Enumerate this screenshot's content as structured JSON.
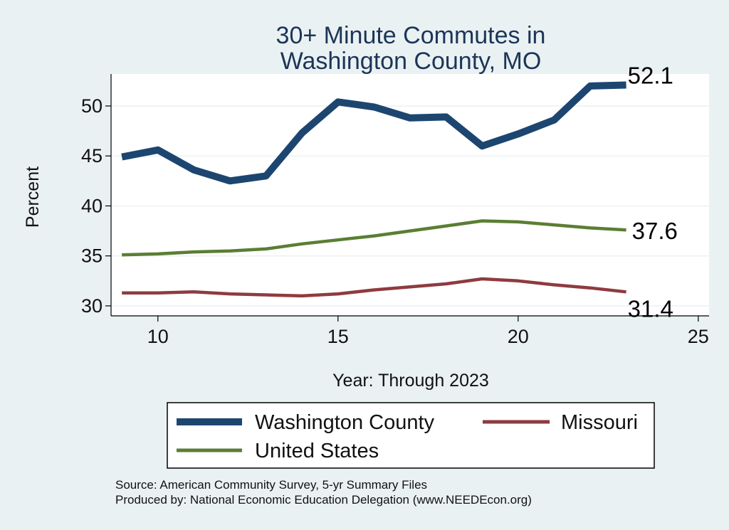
{
  "chart_data": {
    "type": "line",
    "title_lines": [
      "30+ Minute Commutes in",
      "Washington County, MO"
    ],
    "xlabel": "Year: Through 2023",
    "ylabel": "Percent",
    "x": [
      9,
      10,
      11,
      12,
      13,
      14,
      15,
      16,
      17,
      18,
      19,
      20,
      21,
      22,
      23
    ],
    "xlim": [
      8.7,
      25.3
    ],
    "ylim": [
      29.0,
      53.2
    ],
    "xticks": [
      10,
      15,
      20,
      25
    ],
    "yticks": [
      30,
      35,
      40,
      45,
      50
    ],
    "grid": true,
    "legend_position": "bottom",
    "series": [
      {
        "name": "Washington County",
        "color": "#1c4670",
        "values": [
          44.9,
          45.6,
          43.6,
          42.5,
          43.0,
          47.3,
          50.4,
          49.9,
          48.8,
          48.9,
          46.0,
          47.2,
          48.6,
          52.0,
          52.1
        ],
        "end_label": "52.1"
      },
      {
        "name": "United States",
        "color": "#5b7e33",
        "values": [
          35.1,
          35.2,
          35.4,
          35.5,
          35.7,
          36.2,
          36.6,
          37.0,
          37.5,
          38.0,
          38.5,
          38.4,
          38.1,
          37.8,
          37.6
        ],
        "end_label": "37.6"
      },
      {
        "name": "Missouri",
        "color": "#8e3b40",
        "values": [
          31.3,
          31.3,
          31.4,
          31.2,
          31.1,
          31.0,
          31.2,
          31.6,
          31.9,
          32.2,
          32.7,
          32.5,
          32.1,
          31.8,
          31.4
        ],
        "end_label": "31.4"
      }
    ],
    "notes": [
      "Source: American Community Survey, 5-yr Summary Files",
      "Produced by: National Economic Education Delegation (www.NEEDEcon.org)"
    ]
  }
}
